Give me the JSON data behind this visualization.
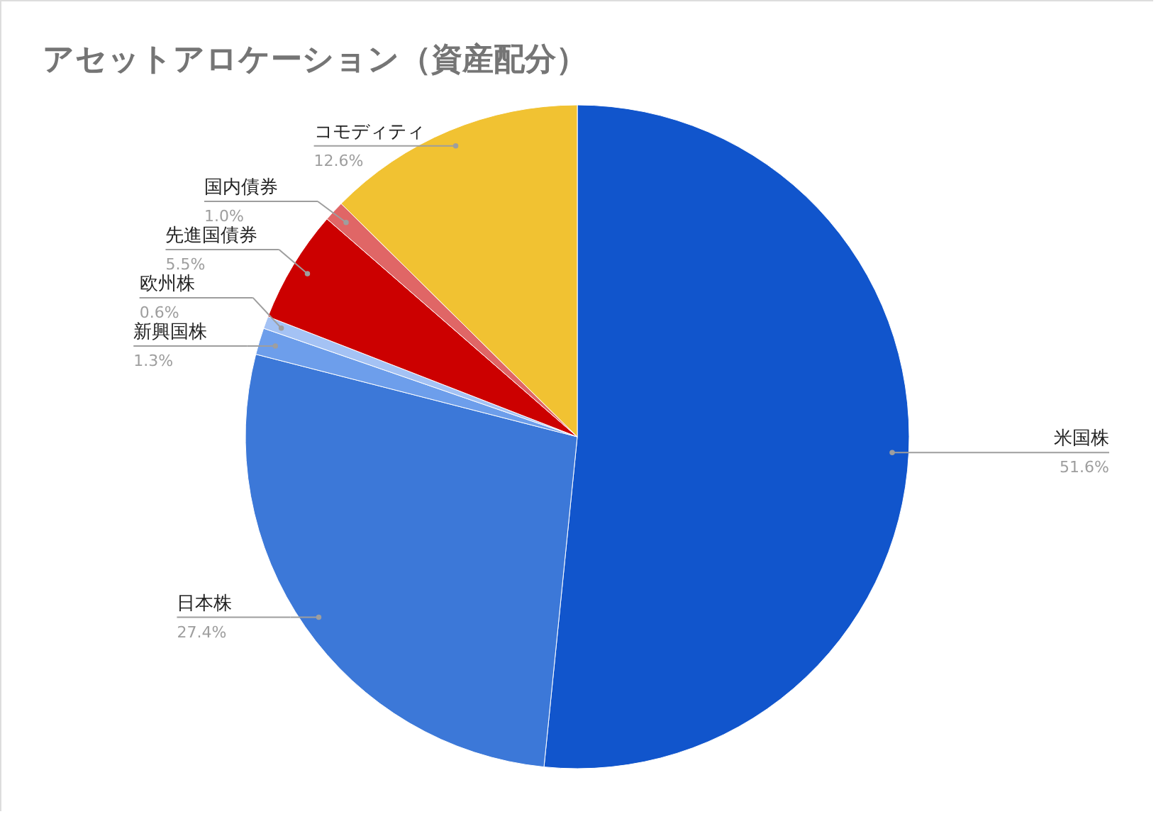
{
  "chart_data": {
    "type": "pie",
    "title": "アセットアロケーション（資産配分）",
    "categories": [
      "米国株",
      "日本株",
      "新興国株",
      "欧州株",
      "先進国債券",
      "国内債券",
      "コモディティ"
    ],
    "values": [
      51.6,
      27.4,
      1.3,
      0.6,
      5.5,
      1.0,
      12.6
    ],
    "value_labels": [
      "51.6%",
      "27.4%",
      "1.3%",
      "0.6%",
      "5.5%",
      "1.0%",
      "12.6%"
    ],
    "colors": [
      "#1155cc",
      "#3c78d8",
      "#6d9eeb",
      "#a4c2f4",
      "#cc0000",
      "#e06666",
      "#f1c232"
    ]
  }
}
